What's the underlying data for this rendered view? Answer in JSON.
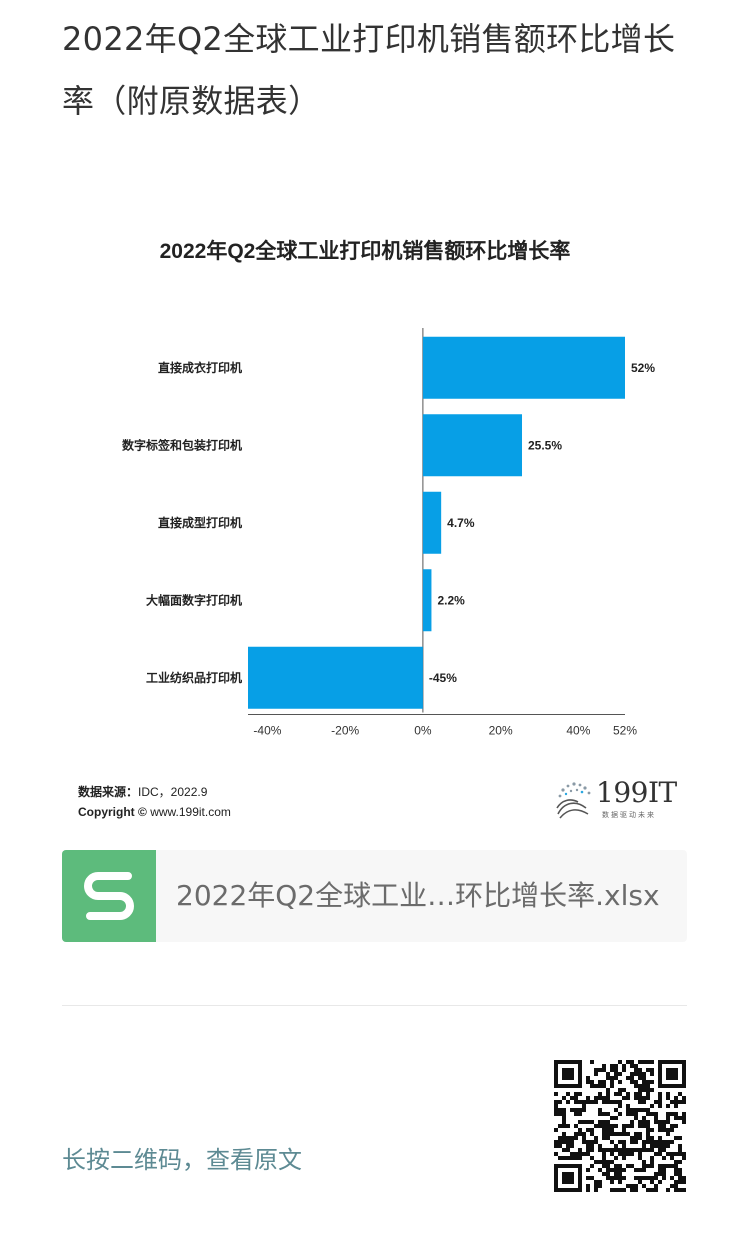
{
  "article": {
    "title": "2022年Q2全球工业打印机销售额环比增长率（附原数据表）"
  },
  "chart_data": {
    "type": "bar",
    "orientation": "horizontal",
    "title": "2022年Q2全球工业打印机销售额环比增长率",
    "categories": [
      "直接成衣打印机",
      "数字标签和包装打印机",
      "直接成型打印机",
      "大幅面数字打印机",
      "工业纺织品打印机"
    ],
    "values": [
      52,
      25.5,
      4.7,
      2.2,
      -45
    ],
    "value_labels": [
      "52%",
      "25.5%",
      "4.7%",
      "2.2%",
      "-45%"
    ],
    "xlim": [
      -45,
      52
    ],
    "x_ticks": [
      -40,
      -20,
      0,
      20,
      40,
      52
    ],
    "x_tick_labels": [
      "-40%",
      "-20%",
      "0%",
      "20%",
      "40%",
      "52%"
    ],
    "bar_color": "#079fe6",
    "grid": false,
    "legend": "none"
  },
  "source": {
    "label": "数据来源：",
    "value": "IDC，2022.9",
    "copyright_label": "Copyright ©",
    "copyright_value": "www.199it.com"
  },
  "brand": {
    "name": "199IT",
    "tagline": "数据驱动未来",
    "icon": "dandelion-logo-icon"
  },
  "attachment": {
    "file_name": "2022年Q2全球工业…环比增长率.xlsx",
    "icon": "spreadsheet-s-icon",
    "icon_color": "#5dbb7c"
  },
  "footer": {
    "qr_caption": "长按二维码，查看原文",
    "qr_icon": "qr-code-icon"
  }
}
